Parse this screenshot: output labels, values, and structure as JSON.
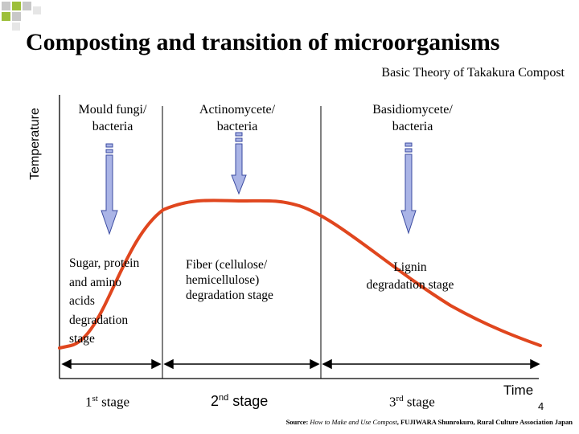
{
  "title": "Composting and transition of microorganisms",
  "subtitle": "Basic Theory of Takakura Compost",
  "axes": {
    "y_label": "Temperature",
    "x_label": "Time"
  },
  "columns": [
    {
      "microorganisms": [
        "Mould fungi/",
        "bacteria"
      ],
      "stage_desc": [
        "Sugar, protein",
        "and amino",
        "acids",
        "degradation",
        "stage"
      ],
      "stage_num": "1",
      "stage_suffix": "st",
      "stage_word": "stage"
    },
    {
      "microorganisms": [
        "Actinomycete/",
        "bacteria"
      ],
      "stage_desc": [
        "Fiber (cellulose/",
        "hemicellulose)",
        "degradation stage"
      ],
      "stage_num": "2",
      "stage_suffix": "nd",
      "stage_word": "stage"
    },
    {
      "microorganisms": [
        "Basidiomycete/",
        "bacteria"
      ],
      "stage_desc": [
        "Lignin",
        "degradation stage"
      ],
      "stage_num": "3",
      "stage_suffix": "rd",
      "stage_word": "stage"
    }
  ],
  "page_number": "4",
  "source": {
    "prefix": "Source: ",
    "book": "How to Make and Use Compost",
    "rest": ", FUJIWARA Shunrokuro, Rural Culture Association Japan"
  },
  "colors": {
    "curve": "#e0461e",
    "arrow_fill": "#aab4e6",
    "arrow_stroke": "#3a4aa0",
    "deco_green": "#9dbf3a",
    "deco_gray": "#c8c8c8"
  }
}
